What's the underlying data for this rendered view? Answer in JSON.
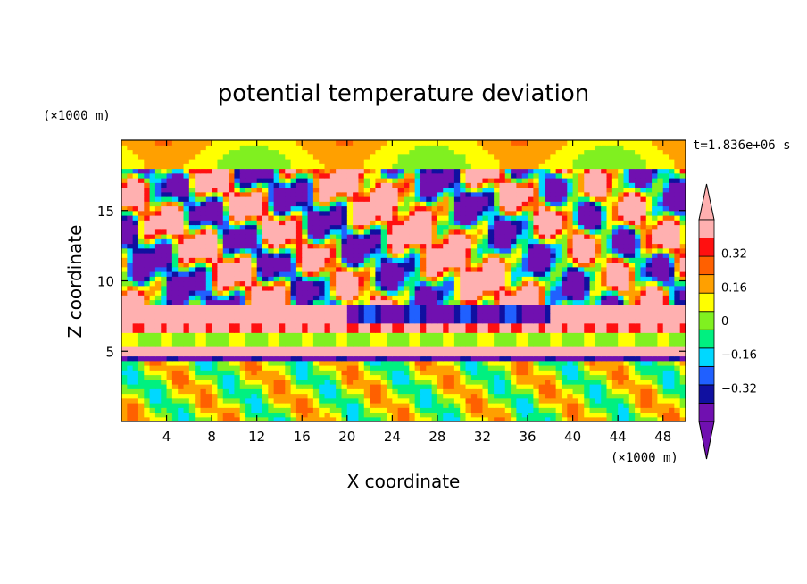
{
  "chart_data": {
    "type": "heatmap",
    "title": "potential temperature deviation",
    "xlabel": "X coordinate",
    "ylabel": "Z coordinate",
    "x_unit": "(×1000 m)",
    "y_unit": "(×1000 m)",
    "time_label": "t=1.836e+06 s",
    "xlim": [
      0,
      50
    ],
    "ylim": [
      0,
      20
    ],
    "x_ticks": [
      4,
      8,
      12,
      16,
      20,
      24,
      28,
      32,
      36,
      40,
      44,
      48
    ],
    "y_ticks": [
      5,
      10,
      15
    ],
    "x_tick_labels": [
      "4",
      "8",
      "12",
      "16",
      "20",
      "24",
      "28",
      "32",
      "36",
      "40",
      "44",
      "48"
    ],
    "y_tick_labels": [
      "5",
      "10",
      "15"
    ],
    "colorbar": {
      "min": -0.48,
      "max": 0.48,
      "levels": [
        -0.48,
        -0.4,
        -0.32,
        -0.24,
        -0.16,
        -0.08,
        0,
        0.08,
        0.16,
        0.24,
        0.32,
        0.4,
        0.48
      ],
      "labels": [
        "0.32",
        "0.16",
        "0",
        "−0.16",
        "−0.32"
      ],
      "label_values": [
        0.32,
        0.16,
        0,
        -0.16,
        -0.32
      ],
      "colors": [
        "#7010b0",
        "#1010a0",
        "#2060ff",
        "#00d8ff",
        "#00f080",
        "#80f020",
        "#ffff00",
        "#ffa000",
        "#ff6000",
        "#ff1010",
        "#ffb0b0"
      ],
      "over_color": "#ffb0b0",
      "under_color": "#7010b0"
    }
  }
}
